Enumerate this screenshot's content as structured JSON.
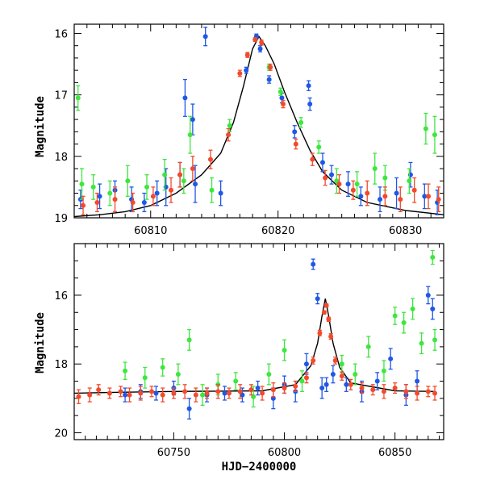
{
  "figure_colors": {
    "blue": "#1f57e6",
    "green": "#3ee63e",
    "red": "#f24a2c",
    "model": "#000000"
  },
  "chart_data": [
    {
      "type": "scatter",
      "title": "",
      "xlabel": "",
      "ylabel": "Magnitude",
      "xlim": [
        60804,
        60833
      ],
      "ylim": [
        19,
        15.85
      ],
      "y_inverted": true,
      "xticks": [
        60810,
        60820,
        60830
      ],
      "yticks": [
        16,
        17,
        18,
        19
      ],
      "grid": false,
      "legend": "none",
      "model_curve": {
        "x": [
          60804,
          60806,
          60808,
          60810,
          60812,
          60814,
          60815.5,
          60816.5,
          60817.3,
          60818,
          60818.5,
          60819,
          60819.7,
          60820.5,
          60821.5,
          60822.5,
          60823.5,
          60825,
          60827,
          60830,
          60833
        ],
        "y": [
          18.98,
          18.95,
          18.9,
          18.8,
          18.6,
          18.3,
          17.95,
          17.45,
          16.85,
          16.25,
          16.05,
          16.2,
          16.5,
          16.95,
          17.45,
          17.9,
          18.25,
          18.55,
          18.75,
          18.88,
          18.95
        ]
      },
      "series": [
        {
          "color": "blue",
          "x": [
            60804.5,
            60806,
            60807.2,
            60808.5,
            60809.5,
            60810.5,
            60811.2,
            60812.3,
            60812.7,
            60813.3,
            60813.5,
            60814.3,
            60815.5,
            60817.5,
            60818.3,
            60818.6,
            60819.3,
            60820.3,
            60821.3,
            60822.4,
            60822.5,
            60823.5,
            60824.2,
            60825.5,
            60826.5,
            60828,
            60829.3,
            60830.4,
            60831.5,
            60832.5
          ],
          "y": [
            18.7,
            18.65,
            18.55,
            18.7,
            18.75,
            18.6,
            18.5,
            18.3,
            17.05,
            17.4,
            18.45,
            16.05,
            18.6,
            16.6,
            16.05,
            16.25,
            16.75,
            17.05,
            17.6,
            16.85,
            17.15,
            18.1,
            18.3,
            18.45,
            18.65,
            18.7,
            18.6,
            18.3,
            18.65,
            18.75
          ],
          "yerr": [
            0.15,
            0.2,
            0.15,
            0.2,
            0.15,
            0.2,
            0.3,
            0.2,
            0.3,
            0.25,
            0.3,
            0.15,
            0.2,
            0.05,
            0.04,
            0.05,
            0.06,
            0.08,
            0.1,
            0.08,
            0.1,
            0.15,
            0.15,
            0.2,
            0.15,
            0.2,
            0.25,
            0.2,
            0.2,
            0.2
          ]
        },
        {
          "color": "green",
          "x": [
            60804.3,
            60804.6,
            60805.5,
            60806.8,
            60808.2,
            60809.7,
            60811.1,
            60812.6,
            60813.1,
            60814.8,
            60816.2,
            60819.3,
            60820.2,
            60821.8,
            60823.2,
            60824.6,
            60826.2,
            60827.6,
            60828.4,
            60830.3,
            60831.6,
            60832.3
          ],
          "y": [
            17.05,
            18.45,
            18.5,
            18.6,
            18.4,
            18.5,
            18.3,
            18.4,
            17.65,
            18.55,
            17.5,
            16.55,
            16.95,
            17.45,
            17.85,
            18.4,
            18.45,
            18.2,
            18.35,
            18.4,
            17.55,
            17.65
          ],
          "yerr": [
            0.2,
            0.25,
            0.2,
            0.2,
            0.25,
            0.2,
            0.25,
            0.2,
            0.3,
            0.2,
            0.1,
            0.05,
            0.06,
            0.08,
            0.1,
            0.2,
            0.2,
            0.25,
            0.2,
            0.2,
            0.25,
            0.3
          ]
        },
        {
          "color": "red",
          "x": [
            60804.7,
            60805.8,
            60807.2,
            60808.6,
            60810.2,
            60811.6,
            60812.3,
            60813.3,
            60814.7,
            60816.1,
            60817,
            60817.6,
            60818.2,
            60818.7,
            60819.4,
            60820.4,
            60821.4,
            60822.7,
            60823.7,
            60824.8,
            60825.9,
            60827,
            60828.4,
            60829.6,
            60830.7,
            60831.8,
            60832.6
          ],
          "y": [
            18.8,
            18.75,
            18.7,
            18.75,
            18.65,
            18.55,
            18.3,
            18.2,
            18.05,
            17.65,
            16.65,
            16.35,
            16.1,
            16.15,
            16.55,
            17.15,
            17.8,
            18.05,
            18.35,
            18.45,
            18.55,
            18.6,
            18.65,
            18.7,
            18.55,
            18.65,
            18.7
          ],
          "yerr": [
            0.15,
            0.15,
            0.2,
            0.15,
            0.15,
            0.2,
            0.2,
            0.2,
            0.15,
            0.1,
            0.05,
            0.04,
            0.03,
            0.04,
            0.05,
            0.06,
            0.08,
            0.1,
            0.12,
            0.15,
            0.15,
            0.2,
            0.15,
            0.2,
            0.2,
            0.2,
            0.2
          ]
        }
      ]
    },
    {
      "type": "scatter",
      "title": "",
      "xlabel": "HJD−2400000",
      "ylabel": "Magnitude",
      "xlim": [
        60705,
        60872
      ],
      "ylim": [
        20.2,
        14.5
      ],
      "y_inverted": true,
      "xticks": [
        60750,
        60800,
        60850
      ],
      "yticks": [
        16,
        18,
        20
      ],
      "grid": false,
      "legend": "none",
      "model_curve": {
        "x": [
          60705,
          60728,
          60750,
          60790,
          60805,
          60812,
          60815,
          60817,
          60818.5,
          60820,
          60822,
          60825,
          60830,
          60850,
          60868
        ],
        "y": [
          18.85,
          18.82,
          18.8,
          18.78,
          18.6,
          18.05,
          17.4,
          16.6,
          16.1,
          16.6,
          17.4,
          18.1,
          18.55,
          18.78,
          18.8
        ]
      },
      "series": [
        {
          "color": "blue",
          "x": [
            60728,
            60735,
            60742,
            60750,
            60757,
            60765,
            60773,
            60781,
            60788,
            60795,
            60800,
            60805,
            60810,
            60813,
            60815,
            60817,
            60819,
            60822,
            60828,
            60835,
            60842,
            60848,
            60855,
            60860,
            60865,
            60867
          ],
          "y": [
            18.9,
            18.8,
            18.85,
            18.7,
            19.3,
            18.9,
            18.85,
            18.9,
            18.7,
            19.0,
            18.6,
            18.8,
            18.0,
            15.1,
            16.1,
            18.7,
            18.6,
            18.3,
            18.6,
            18.8,
            18.5,
            17.85,
            18.9,
            18.5,
            16.0,
            16.4
          ],
          "yerr": [
            0.2,
            0.2,
            0.2,
            0.2,
            0.3,
            0.2,
            0.2,
            0.2,
            0.2,
            0.3,
            0.25,
            0.3,
            0.3,
            0.15,
            0.15,
            0.3,
            0.2,
            0.25,
            0.2,
            0.3,
            0.25,
            0.3,
            0.3,
            0.3,
            0.25,
            0.3
          ]
        },
        {
          "color": "green",
          "x": [
            60728,
            60737,
            60745,
            60752,
            60757,
            60763,
            60770,
            60778,
            60786,
            60793,
            60800,
            60808,
            60826,
            60832,
            60838,
            60845,
            60850,
            60854,
            60858,
            60862,
            60867,
            60868
          ],
          "y": [
            18.2,
            18.4,
            18.1,
            18.3,
            17.3,
            18.9,
            18.6,
            18.5,
            18.95,
            18.3,
            17.6,
            18.5,
            18.0,
            18.3,
            17.5,
            18.2,
            16.6,
            16.8,
            16.4,
            17.4,
            14.9,
            17.3
          ],
          "yerr": [
            0.25,
            0.3,
            0.25,
            0.3,
            0.3,
            0.3,
            0.3,
            0.25,
            0.3,
            0.3,
            0.3,
            0.3,
            0.25,
            0.3,
            0.3,
            0.3,
            0.25,
            0.3,
            0.3,
            0.3,
            0.2,
            0.3
          ]
        },
        {
          "color": "red",
          "x": [
            60707,
            60712,
            60716,
            60721,
            60726,
            60730,
            60735,
            60740,
            60745,
            60750,
            60755,
            60760,
            60765,
            60770,
            60775,
            60780,
            60785,
            60790,
            60795,
            60800,
            60805,
            60810,
            60813,
            60816,
            60818,
            60819,
            60820,
            60821,
            60823,
            60826,
            60830,
            60835,
            60840,
            60845,
            60850,
            60855,
            60860,
            60865,
            60868
          ],
          "y": [
            18.95,
            18.9,
            18.75,
            18.85,
            18.8,
            18.9,
            18.85,
            18.8,
            18.9,
            18.85,
            18.8,
            18.9,
            18.85,
            18.8,
            18.85,
            18.8,
            18.75,
            18.85,
            18.75,
            18.7,
            18.65,
            18.4,
            17.9,
            17.1,
            16.5,
            16.3,
            16.7,
            17.2,
            17.9,
            18.35,
            18.6,
            18.7,
            18.75,
            18.8,
            18.7,
            18.8,
            18.85,
            18.8,
            18.85
          ],
          "yerr": [
            0.2,
            0.2,
            0.15,
            0.15,
            0.15,
            0.2,
            0.2,
            0.15,
            0.2,
            0.15,
            0.2,
            0.2,
            0.15,
            0.2,
            0.15,
            0.2,
            0.15,
            0.2,
            0.2,
            0.15,
            0.15,
            0.15,
            0.1,
            0.08,
            0.05,
            0.05,
            0.06,
            0.08,
            0.1,
            0.12,
            0.15,
            0.15,
            0.15,
            0.2,
            0.15,
            0.2,
            0.2,
            0.15,
            0.2
          ]
        }
      ]
    }
  ]
}
